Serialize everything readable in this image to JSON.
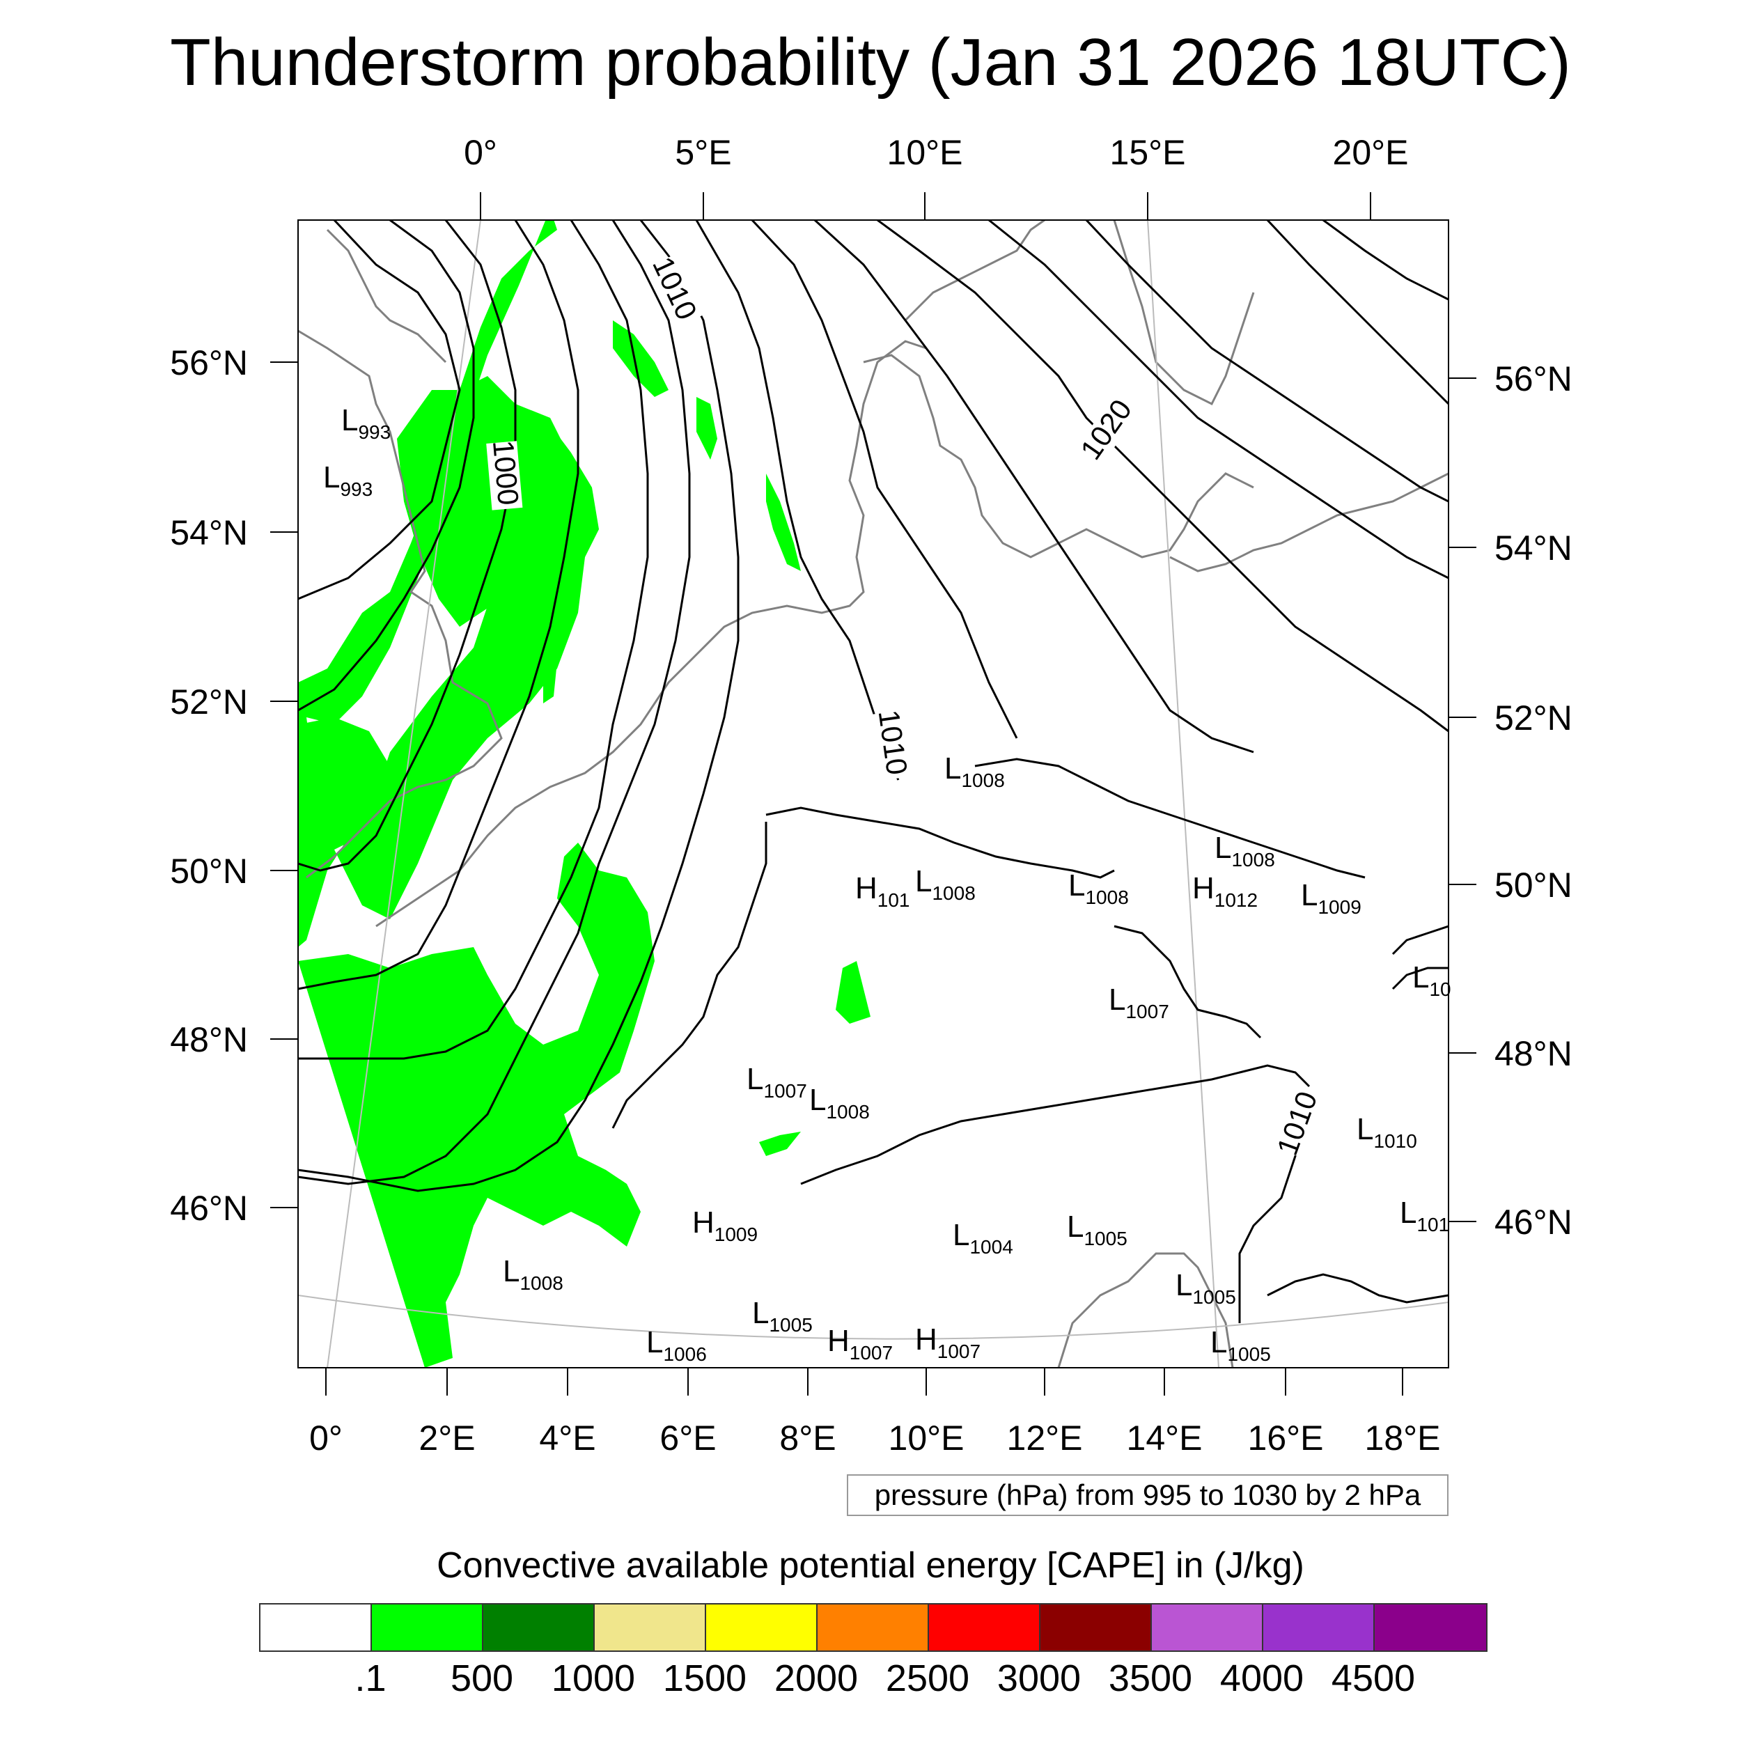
{
  "title": "Thunderstorm probability (Jan 31 2026 18UTC)",
  "map": {
    "top_lon_labels": [
      "0°",
      "5°E",
      "10°E",
      "15°E",
      "20°E"
    ],
    "bottom_lon_labels": [
      "0°",
      "2°E",
      "4°E",
      "6°E",
      "8°E",
      "10°E",
      "12°E",
      "14°E",
      "16°E",
      "18°E"
    ],
    "left_lat_labels": [
      "56°N",
      "54°N",
      "52°N",
      "50°N",
      "48°N",
      "46°N"
    ],
    "right_lat_labels": [
      "56°N",
      "54°N",
      "52°N",
      "50°N",
      "48°N",
      "46°N"
    ],
    "contour_labels": [
      "1000",
      "1010",
      "1020",
      "1010",
      "1010"
    ],
    "pressure_centers": [
      {
        "type": "L",
        "value": "993"
      },
      {
        "type": "L",
        "value": "993"
      },
      {
        "type": "L",
        "value": "1008"
      },
      {
        "type": "L",
        "value": "1008"
      },
      {
        "type": "H",
        "value": "101"
      },
      {
        "type": "L",
        "value": "1008"
      },
      {
        "type": "L",
        "value": "1008"
      },
      {
        "type": "H",
        "value": "1012"
      },
      {
        "type": "L",
        "value": "1009"
      },
      {
        "type": "L",
        "value": "10"
      },
      {
        "type": "L",
        "value": "1007"
      },
      {
        "type": "L",
        "value": "1007"
      },
      {
        "type": "L",
        "value": "1008"
      },
      {
        "type": "L",
        "value": "1010"
      },
      {
        "type": "H",
        "value": "1009"
      },
      {
        "type": "L",
        "value": "1004"
      },
      {
        "type": "L",
        "value": "1005"
      },
      {
        "type": "L",
        "value": "101"
      },
      {
        "type": "L",
        "value": "1008"
      },
      {
        "type": "L",
        "value": "1005"
      },
      {
        "type": "L",
        "value": "1005"
      },
      {
        "type": "L",
        "value": "1006"
      },
      {
        "type": "H",
        "value": "1007"
      },
      {
        "type": "H",
        "value": "1007"
      },
      {
        "type": "L",
        "value": "1005"
      }
    ],
    "colors": {
      "cape_fill": "#00ff00",
      "coastline": "#808080",
      "isobar": "#000000"
    }
  },
  "pressure_note": "pressure (hPa) from 995 to 1030 by 2 hPa",
  "colorbar": {
    "title": "Convective available potential energy [CAPE] in (J/kg)",
    "colors": [
      "#ffffff",
      "#00ff00",
      "#008000",
      "#f0e68c",
      "#ffff00",
      "#ff8000",
      "#ff0000",
      "#8b0000",
      "#ba55d3",
      "#9932cc",
      "#8b008b"
    ],
    "labels": [
      ".1",
      "500",
      "1000",
      "1500",
      "2000",
      "2500",
      "3000",
      "3500",
      "4000",
      "4500"
    ]
  }
}
